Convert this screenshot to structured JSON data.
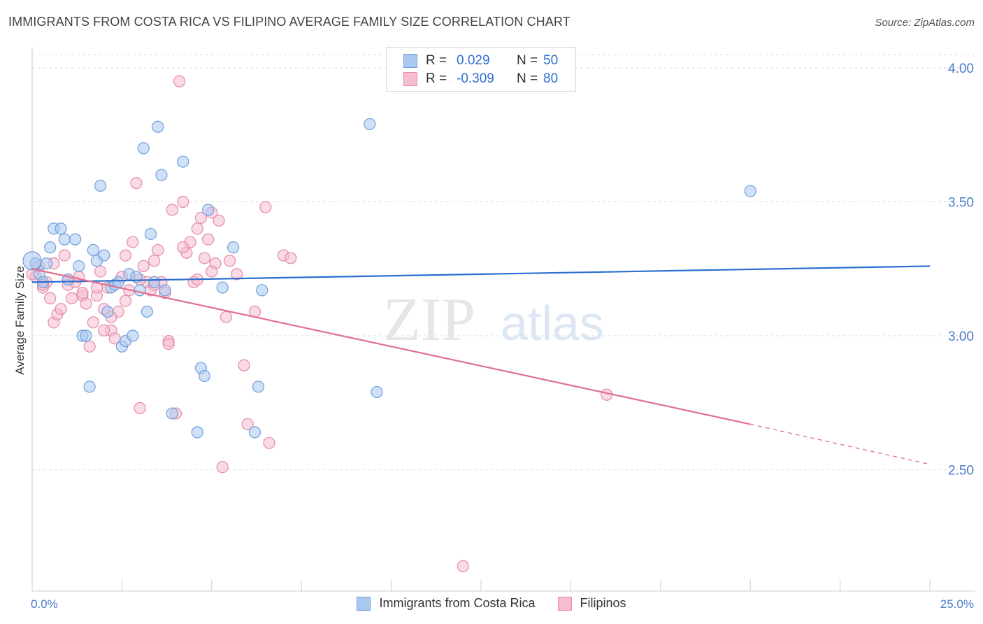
{
  "header": {
    "title": "IMMIGRANTS FROM COSTA RICA VS FILIPINO AVERAGE FAMILY SIZE CORRELATION CHART",
    "source": "Source: ZipAtlas.com"
  },
  "legend": {
    "rows": [
      {
        "r_label": "R =",
        "r_value": "0.029",
        "n_label": "N =",
        "n_value": "50"
      },
      {
        "r_label": "R =",
        "r_value": "-0.309",
        "n_label": "N =",
        "n_value": "80"
      }
    ]
  },
  "watermark": {
    "zip": "ZIP",
    "atlas": "atlas"
  },
  "colors": {
    "blue_fill": "#a9c8f0",
    "blue_stroke": "#6f9fdc",
    "blue_line": "#2a6fd0",
    "pink_fill": "#f6bccf",
    "pink_stroke": "#e48aa9",
    "pink_line": "#e0708f",
    "tick_text": "#4a7cc9",
    "grid": "#dddddd"
  },
  "chart_data": {
    "type": "scatter",
    "title": "IMMIGRANTS FROM COSTA RICA VS FILIPINO AVERAGE FAMILY SIZE CORRELATION CHART",
    "ylabel": "Average Family Size",
    "xlim": [
      0,
      25
    ],
    "ylim": [
      2.0,
      4.1
    ],
    "x_tick_labels": [
      "0.0%",
      "25.0%"
    ],
    "y_ticks": [
      2.5,
      3.0,
      3.5,
      4.0
    ],
    "y_tick_labels": [
      "2.50",
      "3.00",
      "3.50",
      "4.00"
    ],
    "grid": true,
    "legend_placement": "bottom",
    "series": [
      {
        "name": "Immigrants from Costa Rica",
        "color": "#6f9fdc",
        "trend": {
          "x": [
            0,
            25
          ],
          "y": [
            3.2,
            3.26
          ]
        },
        "points": [
          [
            0.1,
            3.27
          ],
          [
            0.2,
            3.23
          ],
          [
            0.3,
            3.2
          ],
          [
            0.4,
            3.27
          ],
          [
            0.5,
            3.33
          ],
          [
            0.6,
            3.4
          ],
          [
            0.8,
            3.4
          ],
          [
            0.9,
            3.36
          ],
          [
            1.0,
            3.21
          ],
          [
            1.2,
            3.36
          ],
          [
            1.3,
            3.26
          ],
          [
            1.4,
            3.0
          ],
          [
            1.5,
            3.0
          ],
          [
            1.6,
            2.81
          ],
          [
            1.7,
            3.32
          ],
          [
            1.8,
            3.28
          ],
          [
            1.9,
            3.56
          ],
          [
            2.0,
            3.3
          ],
          [
            2.1,
            3.09
          ],
          [
            2.2,
            3.18
          ],
          [
            2.3,
            3.19
          ],
          [
            2.4,
            3.2
          ],
          [
            2.5,
            2.96
          ],
          [
            2.6,
            2.98
          ],
          [
            2.7,
            3.23
          ],
          [
            2.8,
            3.0
          ],
          [
            2.9,
            3.22
          ],
          [
            3.0,
            3.17
          ],
          [
            3.1,
            3.7
          ],
          [
            3.2,
            3.09
          ],
          [
            3.3,
            3.38
          ],
          [
            3.4,
            3.2
          ],
          [
            3.5,
            3.78
          ],
          [
            3.6,
            3.6
          ],
          [
            3.7,
            3.17
          ],
          [
            3.9,
            2.71
          ],
          [
            4.2,
            3.65
          ],
          [
            4.6,
            2.64
          ],
          [
            4.7,
            2.88
          ],
          [
            4.8,
            2.85
          ],
          [
            4.9,
            3.47
          ],
          [
            5.3,
            3.18
          ],
          [
            5.6,
            3.33
          ],
          [
            6.2,
            2.64
          ],
          [
            6.3,
            2.81
          ],
          [
            6.4,
            3.17
          ],
          [
            9.4,
            3.79
          ],
          [
            9.6,
            2.79
          ],
          [
            20.0,
            3.54
          ],
          [
            0.0,
            3.28
          ]
        ]
      },
      {
        "name": "Filipinos",
        "color": "#e48aa9",
        "trend": {
          "x": [
            0,
            20
          ],
          "y": [
            3.25,
            2.67
          ],
          "dash_x": [
            20,
            25
          ],
          "dash_y": [
            2.67,
            2.52
          ]
        },
        "points": [
          [
            0.1,
            3.22
          ],
          [
            0.2,
            3.26
          ],
          [
            0.3,
            3.18
          ],
          [
            0.4,
            3.2
          ],
          [
            0.5,
            3.14
          ],
          [
            0.6,
            3.05
          ],
          [
            0.7,
            3.08
          ],
          [
            0.8,
            3.1
          ],
          [
            0.9,
            3.3
          ],
          [
            1.0,
            3.19
          ],
          [
            1.1,
            3.14
          ],
          [
            1.2,
            3.2
          ],
          [
            1.3,
            3.22
          ],
          [
            1.4,
            3.15
          ],
          [
            1.5,
            3.12
          ],
          [
            1.6,
            2.96
          ],
          [
            1.7,
            3.05
          ],
          [
            1.8,
            3.15
          ],
          [
            1.9,
            3.24
          ],
          [
            2.0,
            3.1
          ],
          [
            2.1,
            3.18
          ],
          [
            2.2,
            3.02
          ],
          [
            2.3,
            2.99
          ],
          [
            2.4,
            3.09
          ],
          [
            2.5,
            3.22
          ],
          [
            2.6,
            3.3
          ],
          [
            2.7,
            3.17
          ],
          [
            2.8,
            3.35
          ],
          [
            2.9,
            3.57
          ],
          [
            3.0,
            2.73
          ],
          [
            3.1,
            3.26
          ],
          [
            3.2,
            3.2
          ],
          [
            3.3,
            3.17
          ],
          [
            3.4,
            3.28
          ],
          [
            3.5,
            3.32
          ],
          [
            3.6,
            3.2
          ],
          [
            3.7,
            3.16
          ],
          [
            3.8,
            2.98
          ],
          [
            3.9,
            3.47
          ],
          [
            4.0,
            2.71
          ],
          [
            4.1,
            3.95
          ],
          [
            4.2,
            3.5
          ],
          [
            4.3,
            3.31
          ],
          [
            4.4,
            3.35
          ],
          [
            4.5,
            3.2
          ],
          [
            4.6,
            3.4
          ],
          [
            4.7,
            3.44
          ],
          [
            4.8,
            3.29
          ],
          [
            4.9,
            3.36
          ],
          [
            5.0,
            3.46
          ],
          [
            5.1,
            3.27
          ],
          [
            5.2,
            3.43
          ],
          [
            5.3,
            2.51
          ],
          [
            5.4,
            3.07
          ],
          [
            5.5,
            3.28
          ],
          [
            5.7,
            3.23
          ],
          [
            5.9,
            2.89
          ],
          [
            6.0,
            2.67
          ],
          [
            6.2,
            3.09
          ],
          [
            6.5,
            3.48
          ],
          [
            6.6,
            2.6
          ],
          [
            7.0,
            3.3
          ],
          [
            7.2,
            3.29
          ],
          [
            12.0,
            2.14
          ],
          [
            16.0,
            2.78
          ],
          [
            0.0,
            3.23
          ],
          [
            0.3,
            3.19
          ],
          [
            0.6,
            3.27
          ],
          [
            1.0,
            3.21
          ],
          [
            1.4,
            3.16
          ],
          [
            1.8,
            3.18
          ],
          [
            2.2,
            3.07
          ],
          [
            2.6,
            3.13
          ],
          [
            3.0,
            3.21
          ],
          [
            3.4,
            3.19
          ],
          [
            3.8,
            2.97
          ],
          [
            4.2,
            3.33
          ],
          [
            4.6,
            3.21
          ],
          [
            5.0,
            3.24
          ],
          [
            2.0,
            3.02
          ]
        ]
      }
    ]
  }
}
